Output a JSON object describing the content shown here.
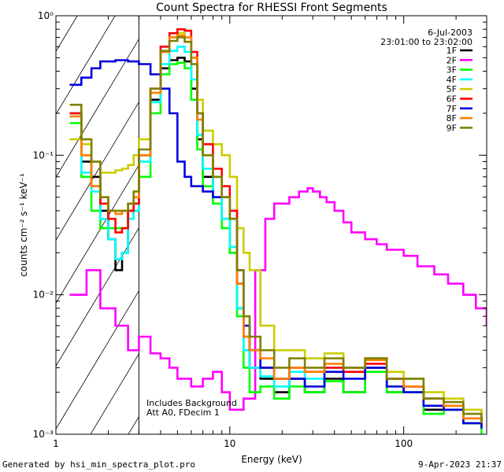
{
  "chart_data": {
    "type": "line",
    "title": "Count Spectra for RHESSI Front Segments",
    "xlabel": "Energy (keV)",
    "ylabel": "counts cm⁻² s⁻¹ keV⁻¹",
    "x_scale": "log",
    "y_scale": "log",
    "xlim": [
      1,
      300
    ],
    "ylim": [
      0.001,
      1.0
    ],
    "x_tick_labels": [
      "1",
      "10",
      "100"
    ],
    "y_tick_labels": [
      "10⁻³",
      "10⁻²",
      "10⁻¹",
      "10⁰"
    ],
    "grid": false,
    "legend_position": "top-right",
    "date_label": "6-Jul-2003",
    "time_range": "23:01:00 to 23:02:00",
    "annotations": [
      "Includes Background",
      "Att A0, FDecim 1"
    ],
    "shaded_region_xmax": 3,
    "series": [
      {
        "name": "1F",
        "color": "#000000",
        "x": [
          1.2,
          1.4,
          1.6,
          1.8,
          2.0,
          2.2,
          2.4,
          2.6,
          2.8,
          3.0,
          3.5,
          4.0,
          4.5,
          5.0,
          5.5,
          6.0,
          6.5,
          7.0,
          8.0,
          9.0,
          10.0,
          11.0,
          12.0,
          13.0,
          15.0,
          18.0,
          22.0,
          27.0,
          35.0,
          45.0,
          60.0,
          80.0,
          100.0,
          130.0,
          170.0,
          220.0,
          280.0
        ],
        "y": [
          0.2,
          0.09,
          0.07,
          0.04,
          0.025,
          0.015,
          0.02,
          0.04,
          0.045,
          0.1,
          0.25,
          0.42,
          0.48,
          0.5,
          0.47,
          0.3,
          0.13,
          0.07,
          0.05,
          0.035,
          0.02,
          0.008,
          0.004,
          0.003,
          0.0025,
          0.002,
          0.0025,
          0.002,
          0.0025,
          0.002,
          0.003,
          0.002,
          0.0022,
          0.0015,
          0.0015,
          0.0012,
          0.0011
        ]
      },
      {
        "name": "2F",
        "color": "#ff00ff",
        "x": [
          1.2,
          1.5,
          1.8,
          2.2,
          2.6,
          3.0,
          3.5,
          4.0,
          4.5,
          5.0,
          6.0,
          7.0,
          8.0,
          9.0,
          10.0,
          12.0,
          14.0,
          16.0,
          18.0,
          20.0,
          22.0,
          25.0,
          28.0,
          30.0,
          33.0,
          36.0,
          40.0,
          45.0,
          50.0,
          60.0,
          70.0,
          80.0,
          100.0,
          120.0,
          150.0,
          180.0,
          220.0,
          260.0,
          300.0
        ],
        "y": [
          0.01,
          0.015,
          0.008,
          0.006,
          0.004,
          0.005,
          0.0038,
          0.0035,
          0.003,
          0.0025,
          0.0022,
          0.0025,
          0.0028,
          0.002,
          0.0015,
          0.0018,
          0.015,
          0.035,
          0.045,
          0.045,
          0.05,
          0.055,
          0.058,
          0.055,
          0.05,
          0.046,
          0.04,
          0.033,
          0.028,
          0.025,
          0.023,
          0.021,
          0.019,
          0.016,
          0.014,
          0.012,
          0.01,
          0.008,
          0.006
        ]
      },
      {
        "name": "3F",
        "color": "#00ff00",
        "x": [
          1.2,
          1.4,
          1.6,
          1.8,
          2.0,
          2.2,
          2.4,
          2.6,
          2.8,
          3.0,
          3.5,
          4.0,
          4.5,
          5.0,
          5.5,
          6.0,
          6.5,
          7.0,
          8.0,
          9.0,
          10.0,
          11.0,
          12.0,
          13.0,
          15.0,
          18.0,
          22.0,
          27.0,
          35.0,
          45.0,
          60.0,
          80.0,
          100.0,
          130.0,
          170.0,
          220.0,
          280.0
        ],
        "y": [
          0.17,
          0.07,
          0.04,
          0.03,
          0.03,
          0.03,
          0.03,
          0.035,
          0.04,
          0.07,
          0.2,
          0.38,
          0.45,
          0.46,
          0.42,
          0.25,
          0.11,
          0.06,
          0.045,
          0.03,
          0.02,
          0.007,
          0.003,
          0.002,
          0.0022,
          0.0018,
          0.0022,
          0.002,
          0.0024,
          0.002,
          0.0028,
          0.002,
          0.002,
          0.0014,
          0.0015,
          0.0012,
          0.001
        ]
      },
      {
        "name": "4F",
        "color": "#00ffff",
        "x": [
          1.2,
          1.4,
          1.6,
          1.8,
          2.0,
          2.2,
          2.4,
          2.6,
          2.8,
          3.0,
          3.5,
          4.0,
          4.5,
          5.0,
          5.5,
          6.0,
          6.5,
          7.0,
          8.0,
          9.0,
          10.0,
          11.0,
          12.0,
          13.0,
          15.0,
          18.0,
          22.0,
          27.0,
          35.0,
          45.0,
          60.0,
          80.0,
          100.0,
          130.0,
          170.0,
          220.0,
          280.0
        ],
        "y": [
          0.19,
          0.075,
          0.055,
          0.035,
          0.025,
          0.018,
          0.02,
          0.035,
          0.04,
          0.09,
          0.24,
          0.45,
          0.56,
          0.6,
          0.55,
          0.35,
          0.14,
          0.08,
          0.05,
          0.035,
          0.022,
          0.008,
          0.004,
          0.003,
          0.0026,
          0.0022,
          0.0028,
          0.0025,
          0.003,
          0.0028,
          0.0035,
          0.0025,
          0.0025,
          0.0018,
          0.0016,
          0.0013,
          0.0012
        ]
      },
      {
        "name": "5F",
        "color": "#cccc00",
        "x": [
          1.2,
          1.4,
          1.6,
          1.8,
          2.0,
          2.2,
          2.4,
          2.6,
          2.8,
          3.0,
          3.5,
          4.0,
          4.5,
          5.0,
          5.5,
          6.0,
          6.5,
          7.0,
          8.0,
          9.0,
          10.0,
          11.0,
          12.0,
          13.0,
          15.0,
          18.0,
          22.0,
          27.0,
          35.0,
          45.0,
          60.0,
          80.0,
          100.0,
          130.0,
          170.0,
          220.0,
          280.0
        ],
        "y": [
          0.13,
          0.12,
          0.09,
          0.075,
          0.075,
          0.078,
          0.08,
          0.085,
          0.1,
          0.13,
          0.28,
          0.55,
          0.7,
          0.75,
          0.7,
          0.5,
          0.25,
          0.15,
          0.12,
          0.1,
          0.07,
          0.03,
          0.02,
          0.015,
          0.006,
          0.004,
          0.004,
          0.0035,
          0.0038,
          0.003,
          0.0035,
          0.0028,
          0.0025,
          0.002,
          0.0018,
          0.0015,
          0.0013
        ]
      },
      {
        "name": "6F",
        "color": "#ff0000",
        "x": [
          1.2,
          1.4,
          1.6,
          1.8,
          2.0,
          2.2,
          2.4,
          2.6,
          2.8,
          3.0,
          3.5,
          4.0,
          4.5,
          5.0,
          5.5,
          6.0,
          6.5,
          7.0,
          8.0,
          9.0,
          10.0,
          11.0,
          12.0,
          13.0,
          15.0,
          18.0,
          22.0,
          27.0,
          35.0,
          45.0,
          60.0,
          80.0,
          100.0,
          130.0,
          170.0,
          220.0,
          280.0
        ],
        "y": [
          0.2,
          0.1,
          0.06,
          0.045,
          0.035,
          0.028,
          0.03,
          0.04,
          0.045,
          0.1,
          0.3,
          0.6,
          0.75,
          0.8,
          0.78,
          0.55,
          0.2,
          0.12,
          0.08,
          0.06,
          0.04,
          0.012,
          0.005,
          0.004,
          0.003,
          0.0025,
          0.003,
          0.0028,
          0.003,
          0.0028,
          0.0032,
          0.0025,
          0.0022,
          0.0018,
          0.0016,
          0.0013,
          0.0012
        ]
      },
      {
        "name": "7F",
        "color": "#0000dd",
        "x": [
          1.2,
          1.4,
          1.6,
          1.8,
          2.0,
          2.2,
          2.4,
          2.6,
          2.8,
          3.0,
          3.5,
          4.0,
          4.5,
          5.0,
          5.5,
          6.0,
          6.5,
          7.0,
          8.0,
          9.0,
          10.0,
          11.0,
          12.0,
          13.0,
          15.0,
          18.0,
          22.0,
          27.0,
          35.0,
          45.0,
          60.0,
          80.0,
          100.0,
          130.0,
          170.0,
          220.0,
          280.0
        ],
        "y": [
          0.32,
          0.36,
          0.42,
          0.47,
          0.47,
          0.48,
          0.48,
          0.47,
          0.47,
          0.45,
          0.38,
          0.3,
          0.2,
          0.09,
          0.07,
          0.06,
          0.06,
          0.055,
          0.05,
          0.05,
          0.035,
          0.015,
          0.006,
          0.004,
          0.003,
          0.0025,
          0.0025,
          0.0022,
          0.0028,
          0.0025,
          0.003,
          0.0022,
          0.002,
          0.0016,
          0.0015,
          0.0012,
          0.0011
        ]
      },
      {
        "name": "8F",
        "color": "#ff8000",
        "x": [
          1.2,
          1.4,
          1.6,
          1.8,
          2.0,
          2.2,
          2.4,
          2.6,
          2.8,
          3.0,
          3.5,
          4.0,
          4.5,
          5.0,
          5.5,
          6.0,
          6.5,
          7.0,
          8.0,
          9.0,
          10.0,
          11.0,
          12.0,
          13.0,
          15.0,
          18.0,
          22.0,
          27.0,
          35.0,
          45.0,
          60.0,
          80.0,
          100.0,
          130.0,
          170.0,
          220.0,
          280.0
        ],
        "y": [
          0.19,
          0.1,
          0.06,
          0.05,
          0.04,
          0.038,
          0.04,
          0.045,
          0.05,
          0.1,
          0.28,
          0.55,
          0.7,
          0.72,
          0.7,
          0.5,
          0.18,
          0.1,
          0.07,
          0.05,
          0.035,
          0.012,
          0.005,
          0.004,
          0.0035,
          0.0025,
          0.003,
          0.0028,
          0.0032,
          0.003,
          0.0034,
          0.0025,
          0.0022,
          0.0018,
          0.0016,
          0.0013,
          0.0012
        ]
      },
      {
        "name": "9F",
        "color": "#808000",
        "x": [
          1.2,
          1.4,
          1.6,
          1.8,
          2.0,
          2.2,
          2.4,
          2.6,
          2.8,
          3.0,
          3.5,
          4.0,
          4.5,
          5.0,
          5.5,
          6.0,
          6.5,
          7.0,
          8.0,
          9.0,
          10.0,
          11.0,
          12.0,
          13.0,
          15.0,
          18.0,
          22.0,
          27.0,
          35.0,
          45.0,
          60.0,
          80.0,
          100.0,
          130.0,
          170.0,
          220.0,
          280.0
        ],
        "y": [
          0.23,
          0.13,
          0.09,
          0.05,
          0.04,
          0.04,
          0.04,
          0.045,
          0.055,
          0.11,
          0.3,
          0.56,
          0.66,
          0.7,
          0.65,
          0.45,
          0.2,
          0.1,
          0.07,
          0.05,
          0.035,
          0.015,
          0.007,
          0.005,
          0.004,
          0.003,
          0.0035,
          0.003,
          0.0035,
          0.003,
          0.0035,
          0.0025,
          0.0025,
          0.0018,
          0.0017,
          0.0014,
          0.0012
        ]
      }
    ]
  },
  "footer": {
    "left": "Generated by hsi_min_spectra_plot.pro",
    "right": "9-Apr-2023 21:37"
  }
}
